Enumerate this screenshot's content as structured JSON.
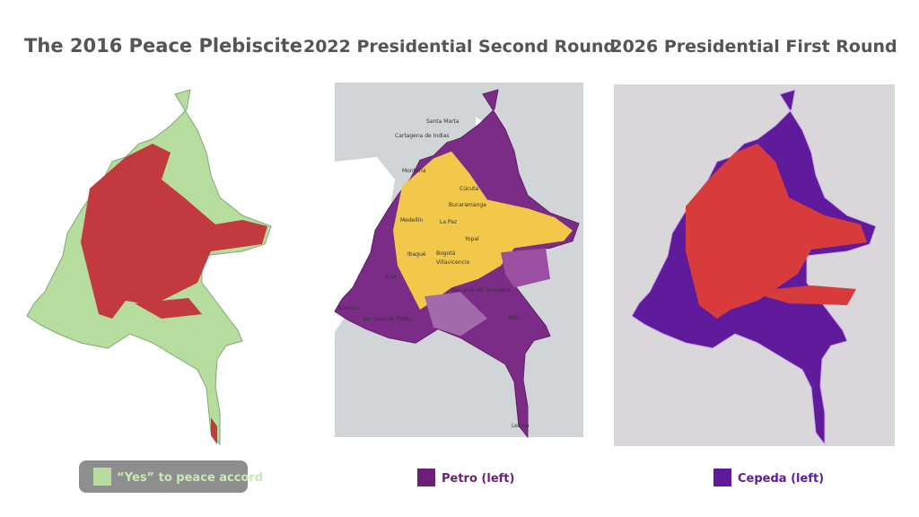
{
  "panels": [
    {
      "title": "The 2016 Peace Plebiscite",
      "legend": "“Yes” to peace accord"
    },
    {
      "title": "2022 Presidential Second Round",
      "legend": "Petro (left)",
      "places": [
        "Santa Marta",
        "Cartagena de Indias",
        "Montería",
        "Cúcuta",
        "Bucaramanga",
        "Medellín",
        "La Paz",
        "Bogotá",
        "Yopal",
        "Ibagué",
        "Villavicencio",
        "Cali",
        "San José del Guaviare",
        "Tumaco",
        "San Juan de Pasto",
        "Mitú",
        "Leticia"
      ]
    },
    {
      "title": "2026 Presidential First Round",
      "legend": "Cepeda (left)"
    }
  ]
}
